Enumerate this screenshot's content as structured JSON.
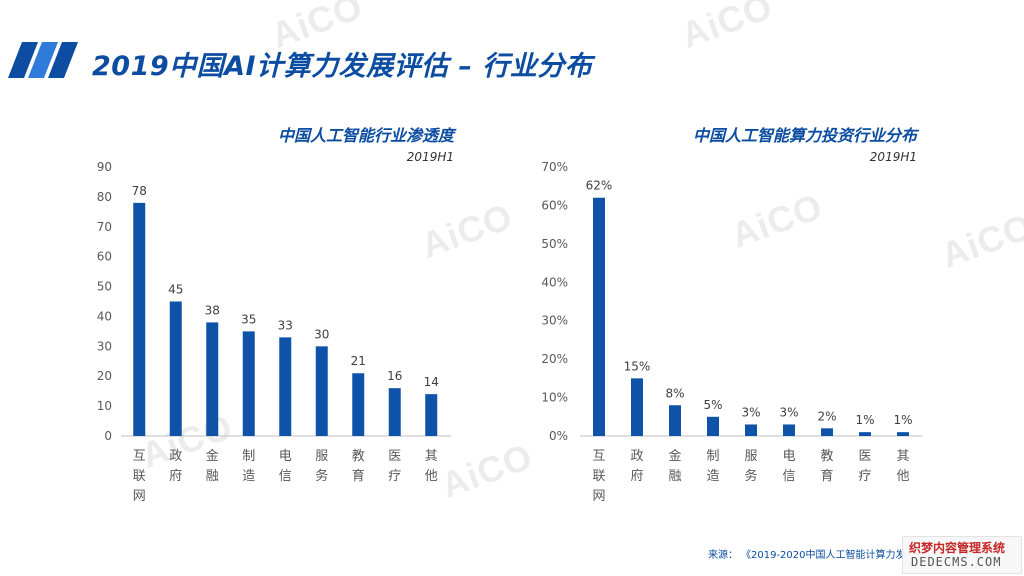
{
  "page": {
    "title": "2019中国AI计算力发展评估 – 行业分布",
    "source_prefix": "来源：",
    "source_text": "《2019-2020中国人工智能计算力发展",
    "watermark": "AiCO",
    "stamp_line1": "织梦内容管理系统",
    "stamp_line2": "DEDECMS.COM"
  },
  "colors": {
    "bar": "#0e53a7",
    "title": "#0c4da2",
    "axis": "#bfbfbf",
    "text": "#595959"
  },
  "chart_data": [
    {
      "type": "bar",
      "title": "中国人工智能行业渗透度",
      "subtitle": "2019H1",
      "categories": [
        "互联网",
        "政府",
        "金融",
        "制造",
        "电信",
        "服务",
        "教育",
        "医疗",
        "其他"
      ],
      "values": [
        78,
        45,
        38,
        35,
        33,
        30,
        21,
        16,
        14
      ],
      "value_labels": [
        "78",
        "45",
        "38",
        "35",
        "33",
        "30",
        "21",
        "16",
        "14"
      ],
      "ylim": [
        0,
        90
      ],
      "yticks": [
        "0",
        "10",
        "20",
        "30",
        "40",
        "50",
        "60",
        "70",
        "80",
        "90"
      ],
      "grid": false,
      "xlabel": "",
      "ylabel": ""
    },
    {
      "type": "bar",
      "title": "中国人工智能算力投资行业分布",
      "subtitle": "2019H1",
      "categories": [
        "互联网",
        "政府",
        "金融",
        "制造",
        "服务",
        "电信",
        "教育",
        "医疗",
        "其他"
      ],
      "values": [
        62,
        15,
        8,
        5,
        3,
        3,
        2,
        1,
        1
      ],
      "value_labels": [
        "62%",
        "15%",
        "8%",
        "5%",
        "3%",
        "3%",
        "2%",
        "1%",
        "1%"
      ],
      "ylim": [
        0,
        70
      ],
      "yticks": [
        "0%",
        "10%",
        "20%",
        "30%",
        "40%",
        "50%",
        "60%",
        "70%"
      ],
      "grid": false,
      "xlabel": "",
      "ylabel": ""
    }
  ]
}
